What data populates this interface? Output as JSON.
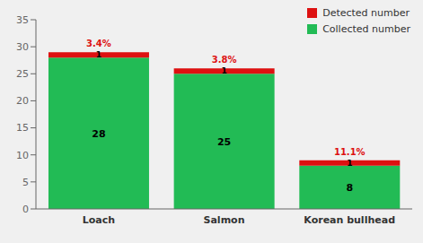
{
  "chart_data": {
    "type": "bar",
    "stacked": true,
    "data_labels": true,
    "legend": "upper right",
    "categories": [
      "Loach",
      "Salmon",
      "Korean bullhead"
    ],
    "series": [
      {
        "name": "Collected number",
        "color": "#22BB55",
        "values": [
          28,
          25,
          8
        ]
      },
      {
        "name": "Detected number",
        "color": "#DD1111",
        "values": [
          1,
          1,
          1
        ]
      }
    ],
    "annotations": [
      {
        "category": "Loach",
        "text": "3.4%",
        "color": "#DD1111"
      },
      {
        "category": "Salmon",
        "text": "3.8%",
        "color": "#DD1111"
      },
      {
        "category": "Korean bullhead",
        "text": "11.1%",
        "color": "#DD1111"
      }
    ],
    "ylim": [
      0,
      35
    ],
    "yticks": [
      0,
      5,
      10,
      15,
      20,
      25,
      30,
      35
    ],
    "grid": false
  }
}
